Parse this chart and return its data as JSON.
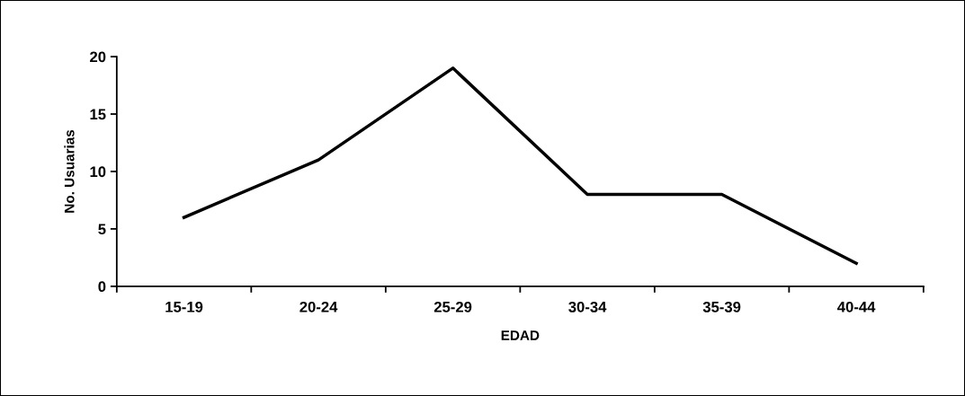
{
  "chart_data": {
    "type": "line",
    "xlabel": "EDAD",
    "ylabel": "No. Usuarias",
    "categories": [
      "15-19",
      "20-24",
      "25-29",
      "30-34",
      "35-39",
      "40-44"
    ],
    "series": [
      {
        "color": "#000000",
        "values": [
          6,
          11,
          19,
          8,
          8,
          2
        ]
      }
    ],
    "ylim": [
      0,
      20
    ],
    "yticks": [
      0,
      5,
      10,
      15,
      20
    ],
    "grid": false,
    "legend": false,
    "marker": "none",
    "line_style": "solid"
  }
}
